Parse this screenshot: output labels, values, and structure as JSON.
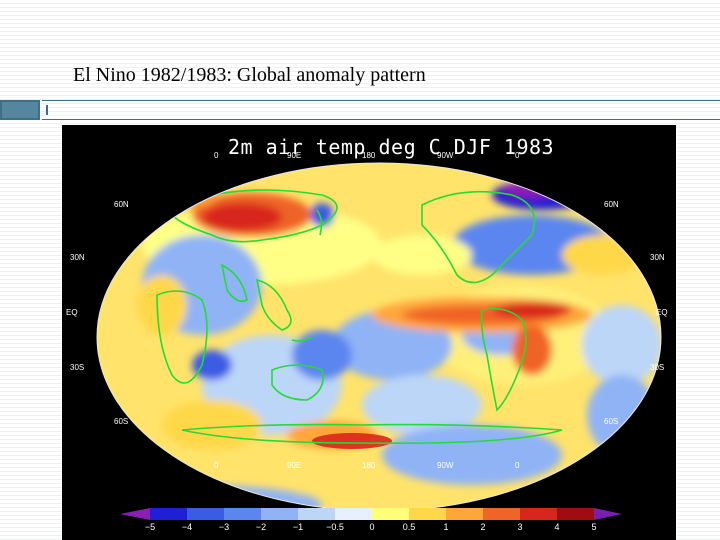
{
  "slide": {
    "title": "El Nino 1982/1983: Global anomaly pattern"
  },
  "map": {
    "title": "2m air temp deg C DJF 1983",
    "lon_labels_top": [
      "0",
      "90E",
      "180",
      "90W",
      "0"
    ],
    "lon_labels_bottom": [
      "0",
      "90E",
      "180",
      "90W",
      "0"
    ],
    "lat_labels_left": [
      "60N",
      "30N",
      "EQ",
      "30S",
      "60S"
    ],
    "lat_labels_right": [
      "60N",
      "30N",
      "EQ",
      "30S",
      "60S"
    ]
  },
  "colorbar": {
    "ticks": [
      "−5",
      "−4",
      "−3",
      "−2",
      "−1",
      "−0.5",
      "0",
      "0.5",
      "1",
      "2",
      "3",
      "4",
      "5"
    ],
    "colors": [
      "#8b1fb5",
      "#1f1fd6",
      "#3a5be3",
      "#5b86ef",
      "#8fb3f5",
      "#bcd6f8",
      "#e6f1fb",
      "#ffff7a",
      "#ffd84a",
      "#ffa63a",
      "#f06428",
      "#d8261c",
      "#a00d10",
      "#7a1fb0"
    ]
  }
}
